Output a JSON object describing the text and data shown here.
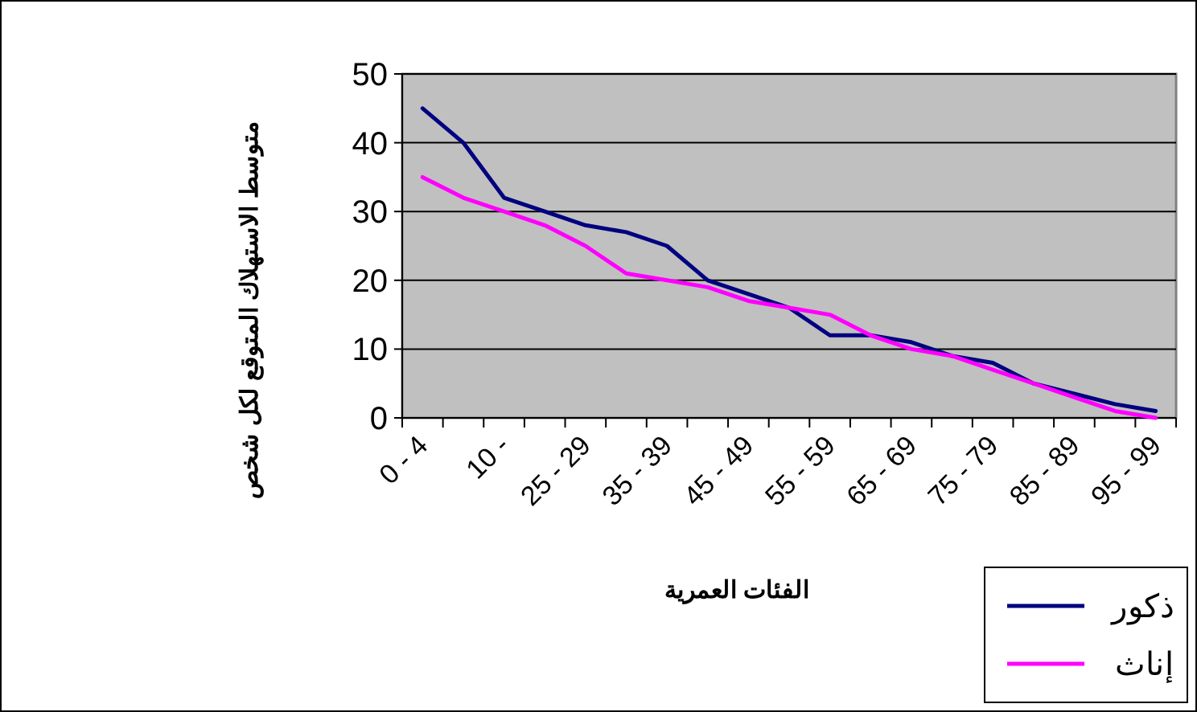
{
  "chart_data": {
    "type": "line",
    "xlabel": "الفئات العمرية",
    "ylabel": "متوسط الاستهلاك المتوقع لكل شخص",
    "categories": [
      "0 - 4",
      null,
      "10 -",
      null,
      "25 - 29",
      null,
      "35 - 39",
      null,
      "45 - 49",
      null,
      "55 - 59",
      null,
      "65 - 69",
      null,
      "75 - 79",
      null,
      "85 - 89",
      null,
      "95 - 99"
    ],
    "series": [
      {
        "name": "ذكور",
        "color": "#000080",
        "values": [
          45,
          40,
          32,
          30,
          28,
          27,
          25,
          20,
          18,
          16,
          12,
          12,
          11,
          9,
          8,
          5,
          3.5,
          2,
          1
        ]
      },
      {
        "name": "إناث",
        "color": "#ff00ff",
        "values": [
          35,
          32,
          30,
          28,
          25,
          21,
          20,
          19,
          17,
          16,
          15,
          12,
          10,
          9,
          7,
          5,
          3,
          1,
          0
        ]
      }
    ],
    "ylim": [
      0,
      50
    ],
    "yticks": [
      0,
      10,
      20,
      30,
      40,
      50
    ],
    "grid": "y",
    "legend": "bottom right",
    "marker": "none",
    "line_style": "solid"
  }
}
